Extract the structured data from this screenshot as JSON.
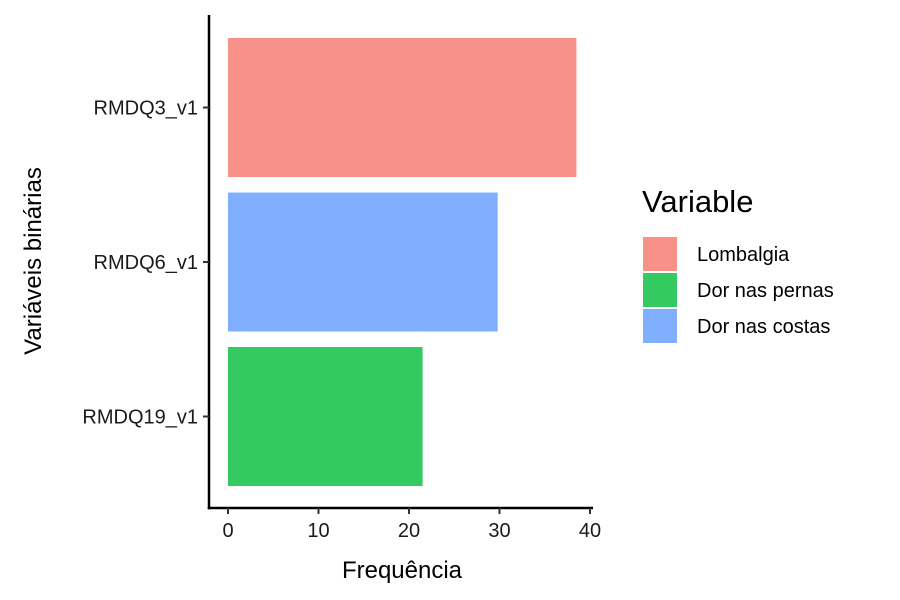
{
  "chart_data": {
    "type": "bar",
    "orientation": "horizontal",
    "xlabel": "Frequência",
    "ylabel": "Variáveis binárias",
    "xlim": [
      0,
      40
    ],
    "xticks": [
      0,
      10,
      20,
      30,
      40
    ],
    "grid": false,
    "legend": {
      "title": "Variable",
      "placement": "right",
      "entries": [
        {
          "label": "Lombalgia",
          "color": "#F8918A"
        },
        {
          "label": "Dor nas pernas",
          "color": "#35C962"
        },
        {
          "label": "Dor nas costas",
          "color": "#80AFFF"
        }
      ]
    },
    "bars": [
      {
        "category": "RMDQ3_v1",
        "value": 38.5,
        "color": "#F8918A"
      },
      {
        "category": "RMDQ6_v1",
        "value": 29.8,
        "color": "#80AFFF"
      },
      {
        "category": "RMDQ19_v1",
        "value": 21.5,
        "color": "#35C962"
      }
    ]
  }
}
